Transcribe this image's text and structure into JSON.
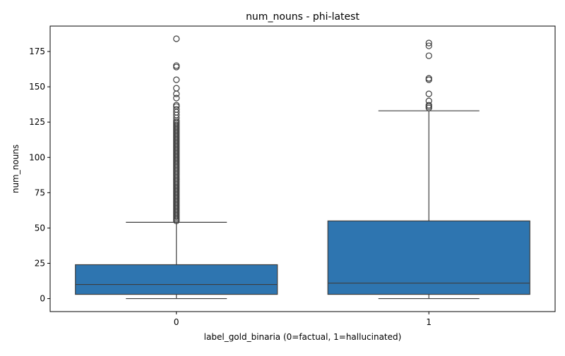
{
  "chart_data": {
    "type": "box",
    "title": "num_nouns - phi-latest",
    "xlabel": "label_gold_binaria (0=factual, 1=hallucinated)",
    "ylabel": "num_nouns",
    "categories": [
      "0",
      "1"
    ],
    "ylim": [
      -9.2,
      193
    ],
    "yticks": [
      0,
      25,
      50,
      75,
      100,
      125,
      150,
      175
    ],
    "grid": false,
    "box_color": "#2e75b0",
    "line_color": "#3d3d3d",
    "boxes": [
      {
        "category": "0",
        "whisker_low": 0,
        "q1": 3,
        "median": 10,
        "q3": 24,
        "whisker_high": 54,
        "outliers": [
          55,
          56,
          57,
          58,
          59,
          60,
          61,
          62,
          63,
          64,
          65,
          66,
          67,
          68,
          69,
          70,
          71,
          72,
          73,
          74,
          75,
          76,
          77,
          78,
          79,
          80,
          81,
          82,
          83,
          84,
          85,
          86,
          87,
          88,
          89,
          90,
          91,
          92,
          93,
          94,
          95,
          96,
          97,
          98,
          99,
          100,
          101,
          102,
          103,
          104,
          105,
          106,
          107,
          108,
          109,
          110,
          111,
          112,
          113,
          114,
          115,
          116,
          117,
          118,
          119,
          120,
          121,
          122,
          123,
          124,
          125,
          126,
          128,
          130,
          132,
          134,
          136,
          137,
          142,
          145,
          149,
          155,
          164,
          165,
          184
        ]
      },
      {
        "category": "1",
        "whisker_low": 0,
        "q1": 3,
        "median": 11,
        "q3": 55,
        "whisker_high": 133,
        "outliers": [
          135,
          136,
          137,
          140,
          145,
          155,
          156,
          172,
          179,
          181
        ]
      }
    ]
  }
}
